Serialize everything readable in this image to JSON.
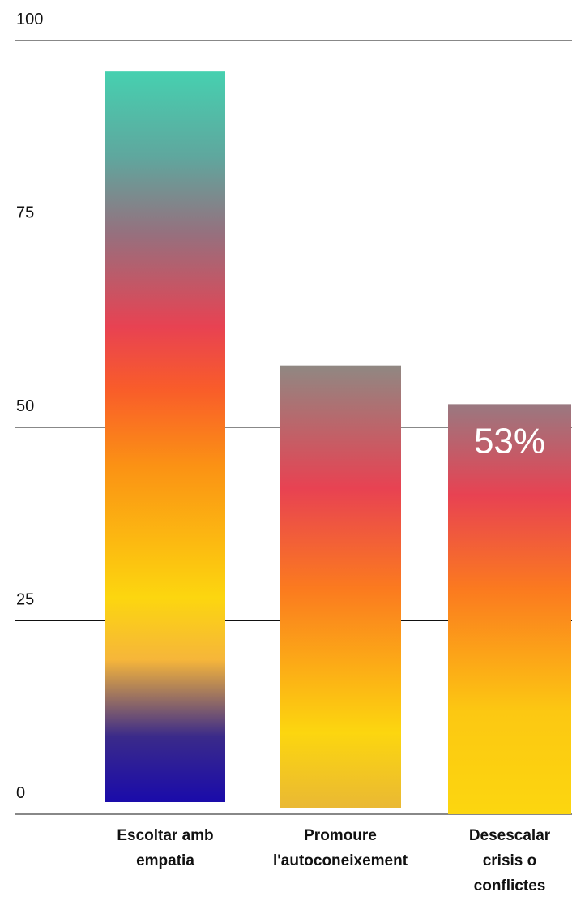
{
  "chart_data": {
    "type": "bar",
    "categories": [
      [
        "Escoltar amb",
        "empatia"
      ],
      [
        "Promoure",
        "l'autoconeixement"
      ],
      [
        "Desescalar",
        "crisis o",
        "conflictes"
      ]
    ],
    "values": [
      96,
      58,
      53
    ],
    "data_labels": [
      "",
      "",
      "53%"
    ],
    "ylim": [
      0,
      100
    ],
    "yticks": [
      "0",
      "25",
      "50",
      "75",
      "100"
    ],
    "grid": true,
    "title": "",
    "xlabel": "",
    "ylabel": ""
  },
  "colors": {
    "gradient_stops": [
      "#1405b0",
      "#fcd60f",
      "#fb9214",
      "#f95c2a",
      "#e84252",
      "#8d7a80",
      "#3ddfb6"
    ],
    "grid": "#111111",
    "text": "#111111"
  }
}
